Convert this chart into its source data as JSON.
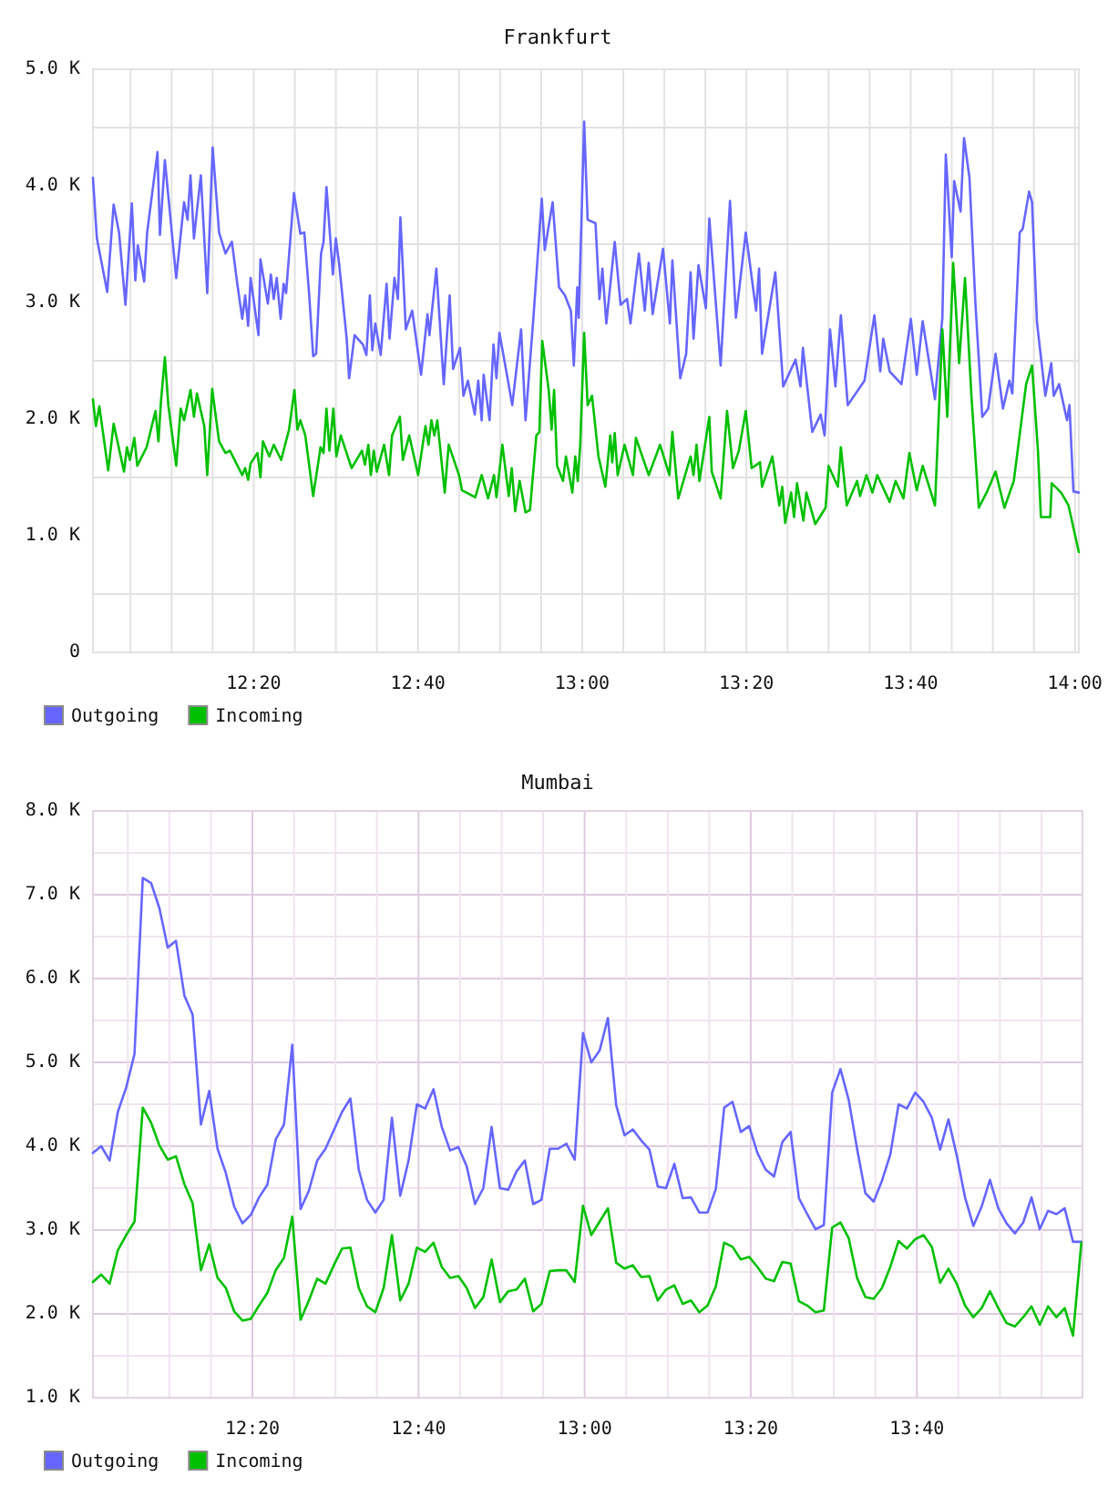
{
  "chart_data": [
    {
      "type": "line",
      "title": "Frankfurt",
      "xlim": [
        12.007,
        14.008
      ],
      "ylim": [
        0,
        5000
      ],
      "grid": true,
      "legend": "bottom left",
      "xticks": [
        {
          "value": 12.0833,
          "label": null
        },
        {
          "value": 12.1667,
          "label": null
        },
        {
          "value": 12.25,
          "label": null
        },
        {
          "value": 12.3333,
          "label": "12:20"
        },
        {
          "value": 12.4167,
          "label": null
        },
        {
          "value": 12.5,
          "label": null
        },
        {
          "value": 12.5833,
          "label": null
        },
        {
          "value": 12.6667,
          "label": "12:40"
        },
        {
          "value": 12.75,
          "label": null
        },
        {
          "value": 12.8333,
          "label": null
        },
        {
          "value": 12.9167,
          "label": null
        },
        {
          "value": 13,
          "label": "13:00"
        },
        {
          "value": 13.0833,
          "label": null
        },
        {
          "value": 13.1667,
          "label": null
        },
        {
          "value": 13.25,
          "label": null
        },
        {
          "value": 13.3333,
          "label": "13:20"
        },
        {
          "value": 13.4167,
          "label": null
        },
        {
          "value": 13.5,
          "label": null
        },
        {
          "value": 13.5833,
          "label": null
        },
        {
          "value": 13.6667,
          "label": "13:40"
        },
        {
          "value": 13.75,
          "label": null
        },
        {
          "value": 13.8333,
          "label": null
        },
        {
          "value": 13.9167,
          "label": null
        },
        {
          "value": 14,
          "label": "14:00"
        }
      ],
      "yticks": [
        0,
        {
          "value": 500,
          "label": null
        },
        {
          "value": 1000,
          "label": "1.0 K"
        },
        {
          "value": 1500,
          "label": null
        },
        {
          "value": 2000,
          "label": "2.0 K"
        },
        {
          "value": 2500,
          "label": null
        },
        {
          "value": 3000,
          "label": "3.0 K"
        },
        {
          "value": 3500,
          "label": null
        },
        {
          "value": 4000,
          "label": "4.0 K"
        },
        {
          "value": 4500,
          "label": null
        },
        {
          "value": 5000,
          "label": "5.0 K"
        }
      ],
      "series": [
        {
          "name": "Outgoing",
          "color": "#6666ff",
          "x": [
            12.007,
            12.015,
            12.036,
            12.049,
            12.06,
            12.073,
            12.086,
            12.093,
            12.098,
            12.111,
            12.117,
            12.138,
            12.143,
            12.153,
            12.176,
            12.192,
            12.199,
            12.205,
            12.212,
            12.226,
            12.239,
            12.25,
            12.263,
            12.276,
            12.289,
            12.3,
            12.31,
            12.316,
            12.322,
            12.327,
            12.343,
            12.347,
            12.362,
            12.368,
            12.374,
            12.38,
            12.388,
            12.394,
            12.399,
            12.415,
            12.428,
            12.436,
            12.446,
            12.454,
            12.46,
            12.47,
            12.475,
            12.481,
            12.494,
            12.5,
            12.507,
            12.522,
            12.527,
            12.538,
            12.555,
            12.562,
            12.569,
            12.574,
            12.58,
            12.591,
            12.603,
            12.609,
            12.619,
            12.626,
            12.631,
            12.642,
            12.655,
            12.673,
            12.686,
            12.69,
            12.704,
            12.719,
            12.731,
            12.738,
            12.752,
            12.759,
            12.768,
            12.782,
            12.789,
            12.796,
            12.8,
            12.812,
            12.82,
            12.826,
            12.832,
            12.846,
            12.858,
            12.876,
            12.885,
            12.901,
            12.918,
            12.924,
            12.94,
            12.953,
            12.965,
            12.977,
            12.983,
            12.99,
            12.993,
            13.004,
            13.011,
            13.027,
            13.035,
            13.041,
            13.049,
            13.066,
            13.078,
            13.091,
            13.098,
            13.115,
            13.127,
            13.135,
            13.143,
            13.164,
            13.178,
            13.183,
            13.199,
            13.211,
            13.22,
            13.226,
            13.236,
            13.251,
            13.258,
            13.281,
            13.3,
            13.312,
            13.332,
            13.353,
            13.359,
            13.365,
            13.392,
            13.408,
            13.433,
            13.443,
            13.448,
            13.467,
            13.484,
            13.492,
            13.503,
            13.514,
            13.525,
            13.539,
            13.573,
            13.593,
            13.605,
            13.611,
            13.624,
            13.648,
            13.667,
            13.679,
            13.691,
            13.716,
            13.731,
            13.738,
            13.75,
            13.755,
            13.768,
            13.775,
            13.786,
            13.798,
            13.812,
            13.824,
            13.839,
            13.854,
            13.867,
            13.873,
            13.888,
            13.894,
            13.907,
            13.913,
            13.923,
            13.94,
            13.952,
            13.957,
            13.968,
            13.984,
            13.989,
            13.997,
            14.008
          ],
          "values": [
            4070,
            3550,
            3090,
            3840,
            3600,
            2980,
            3850,
            3190,
            3490,
            3180,
            3600,
            4290,
            3580,
            4220,
            3210,
            3860,
            3710,
            4090,
            3550,
            4090,
            3080,
            4330,
            3600,
            3420,
            3520,
            3160,
            2860,
            3060,
            2800,
            3210,
            2720,
            3370,
            2990,
            3240,
            3030,
            3210,
            2860,
            3160,
            3080,
            3940,
            3590,
            3600,
            3060,
            2540,
            2560,
            3420,
            3520,
            3990,
            3240,
            3550,
            3320,
            2690,
            2350,
            2720,
            2640,
            2550,
            3060,
            2590,
            2820,
            2550,
            3160,
            2690,
            3210,
            3030,
            3730,
            2770,
            2930,
            2380,
            2900,
            2720,
            3290,
            2300,
            3060,
            2430,
            2610,
            2200,
            2330,
            2040,
            2330,
            1990,
            2380,
            1990,
            2640,
            2350,
            2740,
            2410,
            2120,
            2770,
            1990,
            2870,
            3890,
            3450,
            3860,
            3130,
            3060,
            2930,
            2460,
            3130,
            2870,
            4550,
            3710,
            3680,
            3030,
            3290,
            2820,
            3520,
            2980,
            3030,
            2820,
            3420,
            2930,
            3340,
            2900,
            3460,
            2820,
            3360,
            2350,
            2560,
            3260,
            2690,
            3320,
            2950,
            3720,
            2460,
            3870,
            2870,
            3600,
            2930,
            3290,
            2560,
            3260,
            2280,
            2510,
            2280,
            2610,
            1890,
            2040,
            1860,
            2770,
            2280,
            2890,
            2120,
            2330,
            2890,
            2410,
            2690,
            2410,
            2300,
            2860,
            2380,
            2840,
            2170,
            2870,
            4270,
            3390,
            4040,
            3780,
            4410,
            4070,
            3000,
            2020,
            2090,
            2560,
            2090,
            2330,
            2220,
            3600,
            3630,
            3950,
            3860,
            2830,
            2200,
            2480,
            2200,
            2300,
            1990,
            2120,
            1380,
            1370
          ]
        },
        {
          "name": "Incoming",
          "color": "#00c000",
          "x": [
            12.007,
            12.013,
            12.02,
            12.038,
            12.049,
            12.07,
            12.076,
            12.082,
            12.091,
            12.097,
            12.116,
            12.134,
            12.14,
            12.145,
            12.153,
            12.16,
            12.176,
            12.185,
            12.192,
            12.205,
            12.212,
            12.218,
            12.233,
            12.239,
            12.249,
            12.263,
            12.276,
            12.285,
            12.31,
            12.316,
            12.322,
            12.327,
            12.341,
            12.347,
            12.352,
            12.365,
            12.374,
            12.389,
            12.405,
            12.416,
            12.422,
            12.428,
            12.438,
            12.454,
            12.469,
            12.475,
            12.481,
            12.487,
            12.495,
            12.501,
            12.51,
            12.532,
            12.553,
            12.559,
            12.566,
            12.571,
            12.577,
            12.583,
            12.598,
            12.608,
            12.614,
            12.63,
            12.636,
            12.649,
            12.667,
            12.682,
            12.688,
            12.694,
            12.7,
            12.706,
            12.721,
            12.729,
            12.75,
            12.756,
            12.783,
            12.796,
            12.809,
            12.821,
            12.826,
            12.838,
            12.851,
            12.857,
            12.864,
            12.873,
            12.885,
            12.894,
            12.907,
            12.913,
            12.919,
            12.932,
            12.938,
            12.943,
            12.949,
            12.961,
            12.967,
            12.98,
            12.986,
            12.991,
            12.996,
            13.004,
            13.011,
            13.02,
            13.033,
            13.047,
            13.057,
            13.061,
            13.066,
            13.072,
            13.086,
            13.103,
            13.109,
            13.135,
            13.158,
            13.177,
            13.183,
            13.195,
            13.22,
            13.226,
            13.232,
            13.238,
            13.258,
            13.263,
            13.281,
            13.294,
            13.306,
            13.318,
            13.332,
            13.344,
            13.361,
            13.365,
            13.386,
            13.4,
            13.406,
            13.412,
            13.424,
            13.43,
            13.436,
            13.449,
            13.455,
            13.473,
            13.494,
            13.5,
            13.519,
            13.525,
            13.537,
            13.558,
            13.564,
            13.577,
            13.589,
            13.599,
            13.624,
            13.636,
            13.652,
            13.664,
            13.679,
            13.691,
            13.716,
            13.731,
            13.741,
            13.753,
            13.765,
            13.777,
            13.79,
            13.805,
            13.823,
            13.839,
            13.857,
            13.876,
            13.901,
            13.913,
            13.925,
            13.931,
            13.95,
            13.953,
            13.972,
            13.987,
            14.008
          ],
          "values": [
            2170,
            1940,
            2110,
            1560,
            1960,
            1550,
            1760,
            1650,
            1840,
            1600,
            1760,
            2070,
            1810,
            2150,
            2530,
            2120,
            1600,
            2090,
            1990,
            2250,
            2020,
            2220,
            1940,
            1520,
            2260,
            1810,
            1710,
            1730,
            1520,
            1580,
            1480,
            1620,
            1710,
            1500,
            1810,
            1680,
            1780,
            1650,
            1910,
            2250,
            1910,
            1990,
            1860,
            1340,
            1760,
            1710,
            2090,
            1730,
            2090,
            1680,
            1860,
            1580,
            1730,
            1610,
            1780,
            1520,
            1730,
            1550,
            1780,
            1520,
            1860,
            2020,
            1650,
            1860,
            1520,
            1940,
            1780,
            1990,
            1860,
            1990,
            1370,
            1780,
            1520,
            1390,
            1330,
            1520,
            1320,
            1520,
            1330,
            1780,
            1340,
            1580,
            1210,
            1470,
            1200,
            1220,
            1860,
            1890,
            2670,
            2250,
            1910,
            2250,
            1600,
            1470,
            1680,
            1370,
            1680,
            1470,
            1780,
            2740,
            2120,
            2200,
            1680,
            1420,
            1860,
            1630,
            1880,
            1520,
            1780,
            1520,
            1840,
            1520,
            1780,
            1520,
            1890,
            1320,
            1680,
            1520,
            1780,
            1470,
            2020,
            1550,
            1320,
            2070,
            1580,
            1730,
            2070,
            1580,
            1630,
            1420,
            1680,
            1260,
            1420,
            1110,
            1370,
            1160,
            1450,
            1130,
            1370,
            1100,
            1240,
            1600,
            1420,
            1760,
            1260,
            1470,
            1340,
            1520,
            1370,
            1520,
            1290,
            1470,
            1320,
            1710,
            1390,
            1600,
            1260,
            2770,
            2020,
            3340,
            2480,
            3210,
            2200,
            1240,
            1390,
            1550,
            1240,
            1470,
            2300,
            2460,
            1730,
            1160,
            1160,
            1450,
            1370,
            1260,
            860
          ]
        }
      ]
    },
    {
      "type": "line",
      "title": "Mumbai",
      "xlim": [
        12.0133,
        13.999
      ],
      "ylim": [
        1000,
        8000
      ],
      "grid": true,
      "legend": "bottom left",
      "xticks": [
        {
          "value": 12.0833,
          "label": null
        },
        {
          "value": 12.1667,
          "label": null
        },
        {
          "value": 12.25,
          "label": null
        },
        {
          "value": 12.3333,
          "label": "12:20"
        },
        {
          "value": 12.4167,
          "label": null
        },
        {
          "value": 12.5,
          "label": null
        },
        {
          "value": 12.5833,
          "label": null
        },
        {
          "value": 12.6667,
          "label": "12:40"
        },
        {
          "value": 12.75,
          "label": null
        },
        {
          "value": 12.8333,
          "label": null
        },
        {
          "value": 12.9167,
          "label": null
        },
        {
          "value": 13,
          "label": "13:00"
        },
        {
          "value": 13.0833,
          "label": null
        },
        {
          "value": 13.1667,
          "label": null
        },
        {
          "value": 13.25,
          "label": null
        },
        {
          "value": 13.3333,
          "label": "13:20"
        },
        {
          "value": 13.4167,
          "label": null
        },
        {
          "value": 13.5,
          "label": null
        },
        {
          "value": 13.5833,
          "label": null
        },
        {
          "value": 13.6667,
          "label": "13:40"
        },
        {
          "value": 13.75,
          "label": null
        },
        {
          "value": 13.8333,
          "label": null
        },
        {
          "value": 13.9167,
          "label": null
        }
      ],
      "yticks": [
        {
          "value": 1000,
          "label": "1.0 K"
        },
        {
          "value": 1500,
          "label": null
        },
        {
          "value": 2000,
          "label": "2.0 K"
        },
        {
          "value": 2500,
          "label": null
        },
        {
          "value": 3000,
          "label": "3.0 K"
        },
        {
          "value": 3500,
          "label": null
        },
        {
          "value": 4000,
          "label": "4.0 K"
        },
        {
          "value": 4500,
          "label": null
        },
        {
          "value": 5000,
          "label": "5.0 K"
        },
        {
          "value": 5500,
          "label": null
        },
        {
          "value": 6000,
          "label": "6.0 K"
        },
        {
          "value": 6500,
          "label": null
        },
        {
          "value": 7000,
          "label": "7.0 K"
        },
        {
          "value": 7500,
          "label": null
        },
        {
          "value": 8000,
          "label": "8.0 K"
        }
      ],
      "x": [
        12.0133,
        12.03,
        12.0467,
        12.0633,
        12.08,
        12.0967,
        12.1133,
        12.13,
        12.1467,
        12.1633,
        12.18,
        12.1967,
        12.2133,
        12.23,
        12.2467,
        12.2633,
        12.28,
        12.2967,
        12.3133,
        12.33,
        12.3467,
        12.3633,
        12.38,
        12.3967,
        12.4133,
        12.43,
        12.4467,
        12.4633,
        12.48,
        12.4967,
        12.5133,
        12.53,
        12.5467,
        12.5633,
        12.58,
        12.5967,
        12.6133,
        12.63,
        12.6467,
        12.6633,
        12.68,
        12.6967,
        12.7133,
        12.73,
        12.7467,
        12.7633,
        12.78,
        12.7967,
        12.8133,
        12.83,
        12.8467,
        12.8633,
        12.88,
        12.8967,
        12.9133,
        12.93,
        12.9467,
        12.9633,
        12.98,
        12.9967,
        13.0133,
        13.03,
        13.0467,
        13.0633,
        13.08,
        13.0967,
        13.1133,
        13.13,
        13.1467,
        13.1633,
        13.18,
        13.1967,
        13.2133,
        13.23,
        13.2467,
        13.2633,
        13.28,
        13.2967,
        13.3133,
        13.33,
        13.3467,
        13.3633,
        13.38,
        13.3967,
        13.4133,
        13.43,
        13.4467,
        13.4633,
        13.48,
        13.4967,
        13.5133,
        13.53,
        13.5467,
        13.5633,
        13.58,
        13.5967,
        13.6133,
        13.63,
        13.6467,
        13.6633,
        13.68,
        13.6967,
        13.7133,
        13.73,
        13.7467,
        13.7633,
        13.78,
        13.7967,
        13.8133,
        13.83,
        13.8467,
        13.8633,
        13.88,
        13.8967,
        13.9133,
        13.93,
        13.9467,
        13.9633,
        13.98,
        13.9967
      ],
      "series": [
        {
          "name": "Outgoing",
          "color": "#6666ff",
          "values": [
            3920,
            4000,
            3830,
            4410,
            4700,
            5100,
            7200,
            7140,
            6840,
            6370,
            6450,
            5800,
            5570,
            4260,
            4660,
            3970,
            3680,
            3280,
            3080,
            3180,
            3390,
            3540,
            4080,
            4260,
            5210,
            3250,
            3470,
            3830,
            3970,
            4190,
            4410,
            4570,
            3720,
            3360,
            3210,
            3360,
            4340,
            3410,
            3830,
            4500,
            4450,
            4680,
            4230,
            3950,
            3990,
            3760,
            3310,
            3500,
            4230,
            3500,
            3480,
            3700,
            3830,
            3310,
            3360,
            3970,
            3970,
            4030,
            3840,
            5350,
            5000,
            5140,
            5530,
            4490,
            4130,
            4200,
            4070,
            3960,
            3520,
            3500,
            3790,
            3380,
            3390,
            3210,
            3210,
            3490,
            4460,
            4530,
            4170,
            4240,
            3920,
            3720,
            3640,
            4050,
            4170,
            3380,
            3190,
            3010,
            3060,
            4640,
            4920,
            4550,
            3970,
            3440,
            3340,
            3590,
            3900,
            4500,
            4450,
            4640,
            4530,
            4340,
            3960,
            4320,
            3890,
            3390,
            3050,
            3280,
            3600,
            3260,
            3080,
            2960,
            3090,
            3390,
            3010,
            3230,
            3190,
            3260,
            2860,
            2860
          ]
        },
        {
          "name": "Incoming",
          "color": "#00c000",
          "values": [
            2380,
            2470,
            2360,
            2760,
            2940,
            3100,
            4460,
            4280,
            4010,
            3840,
            3880,
            3550,
            3320,
            2520,
            2830,
            2430,
            2310,
            2030,
            1920,
            1940,
            2100,
            2250,
            2520,
            2670,
            3160,
            1930,
            2160,
            2420,
            2360,
            2580,
            2780,
            2790,
            2310,
            2090,
            2020,
            2310,
            2940,
            2160,
            2360,
            2790,
            2740,
            2850,
            2560,
            2430,
            2450,
            2310,
            2070,
            2200,
            2650,
            2140,
            2270,
            2290,
            2420,
            2030,
            2120,
            2510,
            2520,
            2520,
            2380,
            3290,
            2940,
            3100,
            3260,
            2610,
            2540,
            2580,
            2440,
            2450,
            2160,
            2290,
            2340,
            2120,
            2160,
            2020,
            2100,
            2330,
            2850,
            2800,
            2650,
            2680,
            2560,
            2420,
            2390,
            2620,
            2600,
            2150,
            2100,
            2020,
            2040,
            3030,
            3090,
            2900,
            2430,
            2200,
            2180,
            2310,
            2560,
            2870,
            2780,
            2890,
            2940,
            2800,
            2370,
            2540,
            2360,
            2100,
            1960,
            2070,
            2270,
            2070,
            1890,
            1850,
            1960,
            2090,
            1870,
            2090,
            1960,
            2070,
            1740,
            2850
          ]
        }
      ]
    }
  ]
}
